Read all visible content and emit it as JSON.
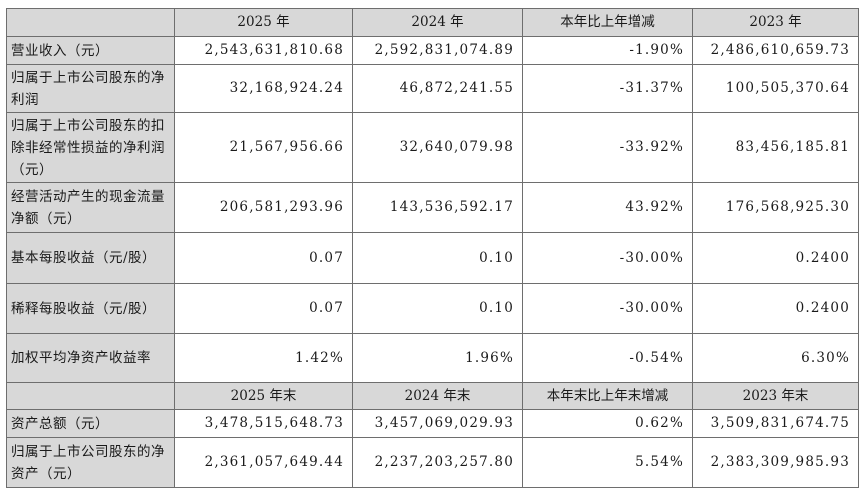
{
  "header_period": [
    "2025 年",
    "2024 年",
    "本年比上年增减",
    "2023 年"
  ],
  "rows_period": [
    {
      "label": "营业收入（元）",
      "values": [
        "2,543,631,810.68",
        "2,592,831,074.89",
        "-1.90%",
        "2,486,610,659.73"
      ]
    },
    {
      "label": "归属于上市公司股东的净利润",
      "values": [
        "32,168,924.24",
        "46,872,241.55",
        "-31.37%",
        "100,505,370.64"
      ]
    },
    {
      "label": "归属于上市公司股东的扣除非经常性损益的净利润（元）",
      "values": [
        "21,567,956.66",
        "32,640,079.98",
        "-33.92%",
        "83,456,185.81"
      ]
    },
    {
      "label": "经营活动产生的现金流量净额（元）",
      "values": [
        "206,581,293.96",
        "143,536,592.17",
        "43.92%",
        "176,568,925.30"
      ]
    },
    {
      "label": "基本每股收益（元/股）",
      "values": [
        "0.07",
        "0.10",
        "-30.00%",
        "0.2400"
      ]
    },
    {
      "label": "稀释每股收益（元/股）",
      "values": [
        "0.07",
        "0.10",
        "-30.00%",
        "0.2400"
      ]
    },
    {
      "label": "加权平均净资产收益率",
      "values": [
        "1.42%",
        "1.96%",
        "-0.54%",
        "6.30%"
      ]
    }
  ],
  "header_end": [
    "2025 年末",
    "2024 年末",
    "本年末比上年末增减",
    "2023 年末"
  ],
  "rows_end": [
    {
      "label": "资产总额（元）",
      "values": [
        "3,478,515,648.73",
        "3,457,069,029.93",
        "0.62%",
        "3,509,831,674.75"
      ]
    },
    {
      "label": "归属于上市公司股东的净资产（元）",
      "values": [
        "2,361,057,649.44",
        "2,237,203,257.80",
        "5.54%",
        "2,383,309,985.93"
      ]
    }
  ]
}
